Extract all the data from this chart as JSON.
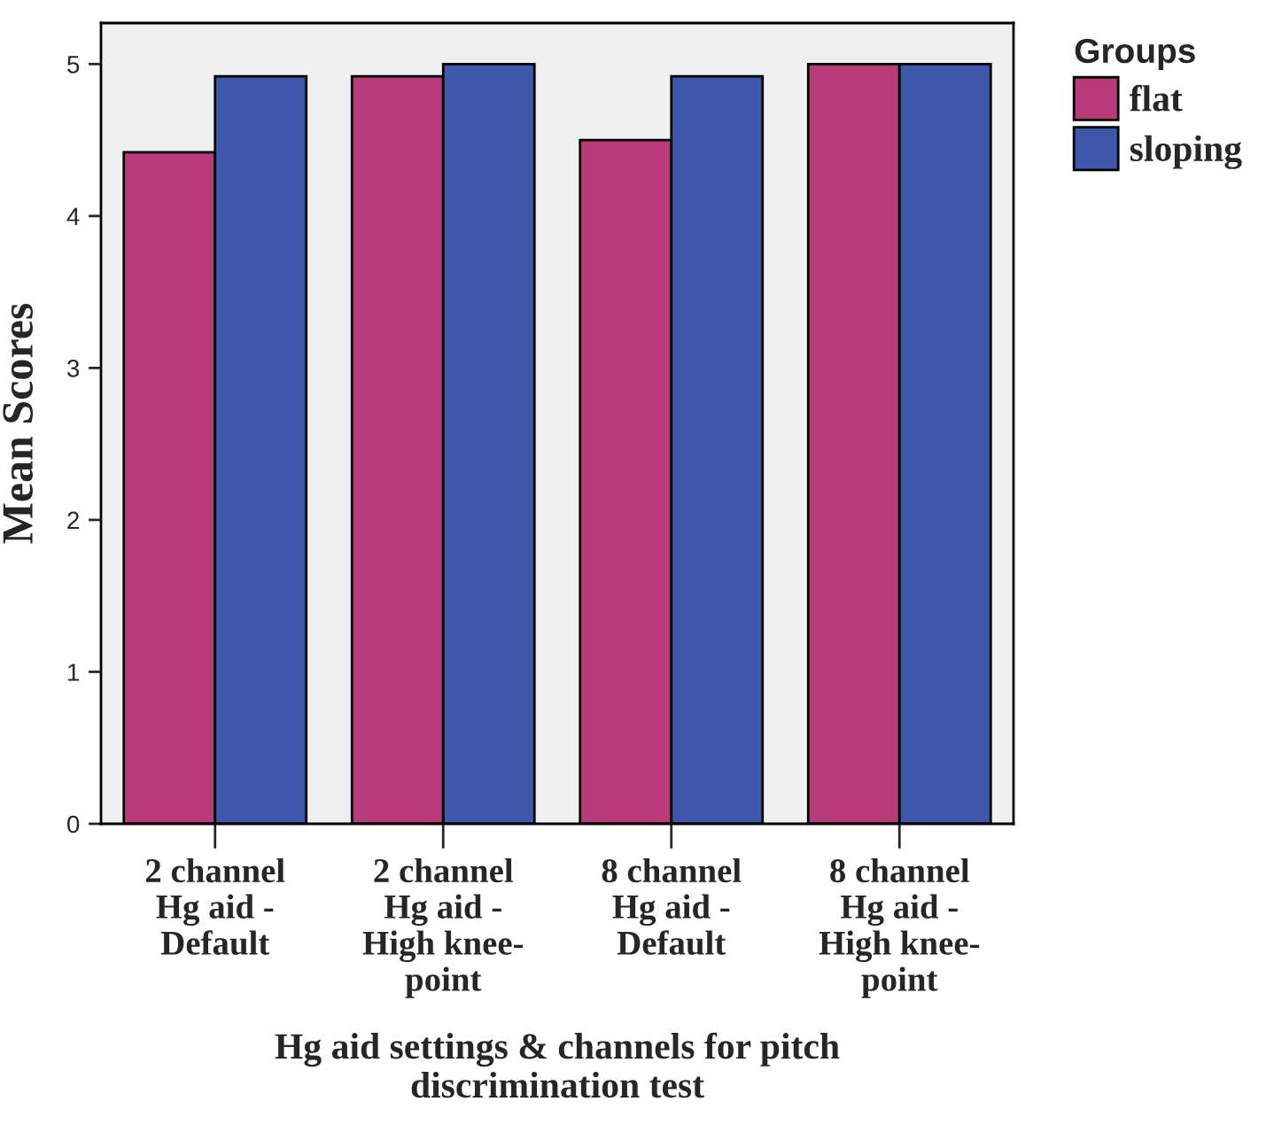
{
  "chart_data": {
    "type": "bar",
    "categories": [
      "2 channel\nHg aid -\nDefault",
      "2 channel\nHg aid -\nHigh knee-\npoint",
      "8 channel\nHg aid -\nDefault",
      "8 channel\nHg aid -\nHigh knee-\npoint"
    ],
    "series": [
      {
        "name": "flat",
        "color": "#b83c7a",
        "values": [
          4.42,
          4.92,
          4.5,
          5.0
        ]
      },
      {
        "name": "sloping",
        "color": "#3d57ab",
        "values": [
          4.92,
          5.0,
          4.92,
          5.0
        ]
      }
    ],
    "xlabel": "Hg aid settings & channels for pitch\ndiscrimination test",
    "ylabel": "Mean Scores",
    "legend_title": "Groups",
    "legend": "top right",
    "ylim": [
      0,
      5.27
    ],
    "yticks": [
      0,
      1,
      2,
      3,
      4,
      5
    ],
    "grid": false
  }
}
